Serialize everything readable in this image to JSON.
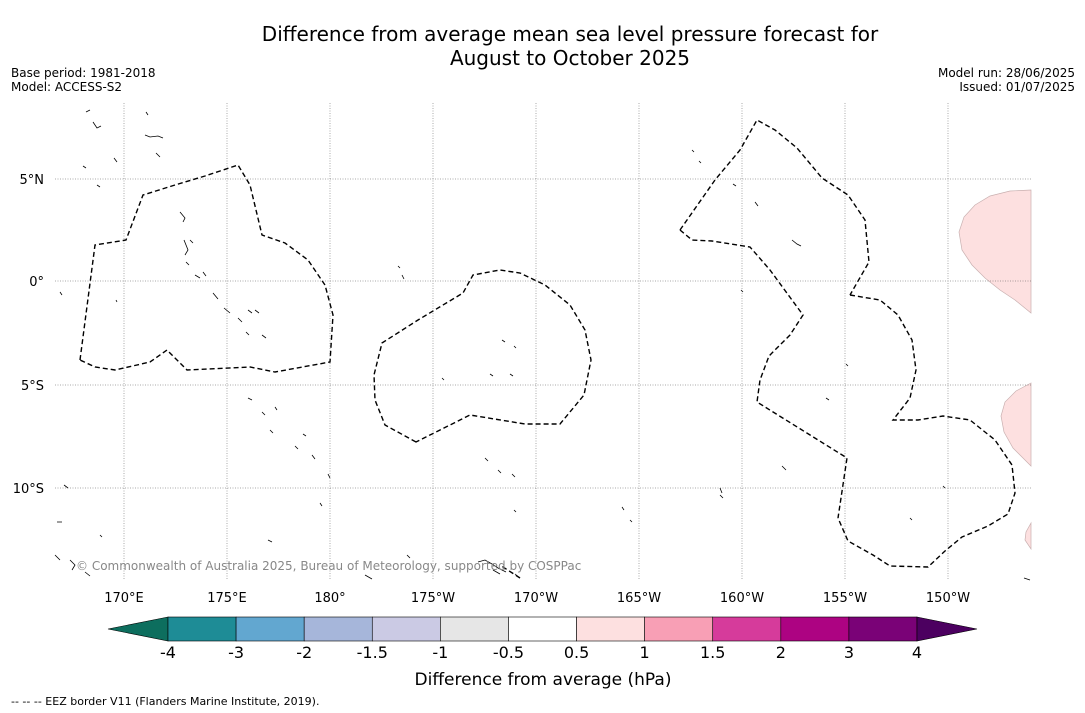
{
  "title": {
    "line1": "Difference from average mean sea level pressure forecast for",
    "line2": "August to October 2025"
  },
  "meta_left": {
    "base_period": "Base period: 1981-2018",
    "model": "Model: ACCESS-S2"
  },
  "meta_right": {
    "model_run": "Model run: 28/06/2025",
    "issued": "Issued: 01/07/2025"
  },
  "map": {
    "lon_ticks": [
      "170°E",
      "175°E",
      "180°",
      "175°W",
      "170°W",
      "165°W",
      "160°W",
      "155°W",
      "150°W"
    ],
    "lat_ticks": [
      "5°N",
      "0°",
      "5°S",
      "10°S"
    ],
    "copyright": "© Commonwealth of Australia 2025, Bureau of Meteorology, supported by COSPPac",
    "anomaly_fill": "#fde0e0",
    "anomaly_category": "0.5 to 1 hPa"
  },
  "colorbar": {
    "title": "Difference from average (hPa)",
    "labels": [
      "-4",
      "-3",
      "-2",
      "-1.5",
      "-1",
      "-0.5",
      "0.5",
      "1",
      "1.5",
      "2",
      "3",
      "4"
    ],
    "colors": [
      "#1e8c96",
      "#62a7d0",
      "#a6b6da",
      "#cbcae4",
      "#e6e6e6",
      "#ffffff",
      "#fde0e0",
      "#f89fb5",
      "#d63b9b",
      "#ad0382",
      "#7a0277"
    ],
    "under_color": "#0d6e5e",
    "over_color": "#4c0060"
  },
  "footnote": "--  --  -- EEZ border V11 (Flanders Marine Institute, 2019)."
}
